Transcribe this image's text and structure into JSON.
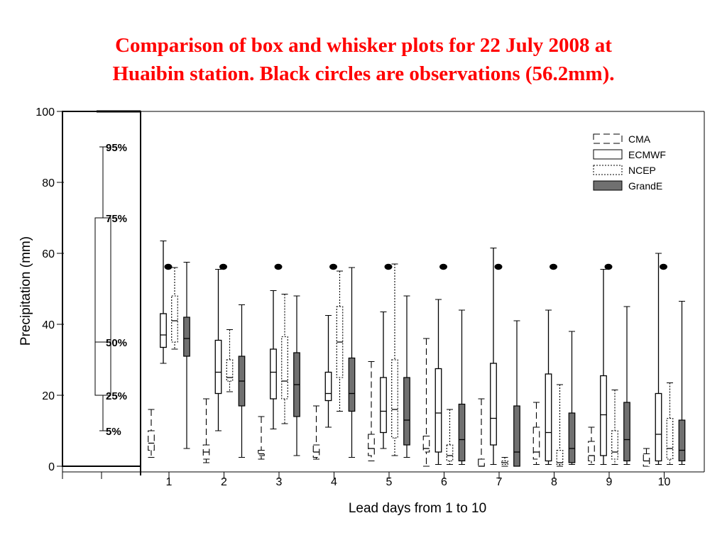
{
  "chart_data": {
    "type": "box",
    "title_line1": "Comparison of box and whisker plots for 22 July 2008 at",
    "title_line2": "Huaibin station. Black circles are observations (56.2mm).",
    "xlabel": "Lead days from 1 to 10",
    "ylabel": "Precipitation (mm)",
    "ylim": [
      0,
      100
    ],
    "yticks": [
      "0",
      "20",
      "40",
      "60",
      "80",
      "100"
    ],
    "categories": [
      "1",
      "2",
      "3",
      "4",
      "5",
      "6",
      "7",
      "8",
      "9",
      "10"
    ],
    "observation": 56.2,
    "key": {
      "p95": 90,
      "p75": 70,
      "p50": 35,
      "p25": 20,
      "p5": 10,
      "labels": [
        "95%",
        "75%",
        "50%",
        "25%",
        "5%"
      ]
    },
    "legend": [
      "CMA",
      "ECMWF",
      "NCEP",
      "GrandE"
    ],
    "series": [
      {
        "name": "CMA",
        "boxes": [
          {
            "p5": 2.5,
            "p25": 4.5,
            "p50": 6.5,
            "p75": 10,
            "p95": 16
          },
          {
            "p5": 1,
            "p25": 2,
            "p50": 4,
            "p75": 6,
            "p95": 19
          },
          {
            "p5": 2,
            "p25": 3,
            "p50": 3.5,
            "p75": 4.5,
            "p95": 14
          },
          {
            "p5": 2,
            "p25": 2.5,
            "p50": 4,
            "p75": 6,
            "p95": 17
          },
          {
            "p5": 1.5,
            "p25": 3,
            "p50": 5,
            "p75": 9,
            "p95": 29.5
          },
          {
            "p5": 0,
            "p25": 4,
            "p50": 5,
            "p75": 8.5,
            "p95": 36
          },
          {
            "p5": 0,
            "p25": 0,
            "p50": 0,
            "p75": 2,
            "p95": 19
          },
          {
            "p5": 0.5,
            "p25": 2,
            "p50": 4,
            "p75": 11,
            "p95": 18
          },
          {
            "p5": 0.5,
            "p25": 1.5,
            "p50": 3,
            "p75": 7,
            "p95": 11
          },
          {
            "p5": 0,
            "p25": 0,
            "p50": 1.5,
            "p75": 3.5,
            "p95": 5
          }
        ]
      },
      {
        "name": "ECMWF",
        "boxes": [
          {
            "p5": 29,
            "p25": 33.5,
            "p50": 37,
            "p75": 43,
            "p95": 63.5
          },
          {
            "p5": 10,
            "p25": 20.5,
            "p50": 26.5,
            "p75": 35.5,
            "p95": 55.5
          },
          {
            "p5": 10.5,
            "p25": 19,
            "p50": 26.5,
            "p75": 33,
            "p95": 49.5
          },
          {
            "p5": 11,
            "p25": 18.5,
            "p50": 20.5,
            "p75": 26.5,
            "p95": 42.5
          },
          {
            "p5": 5,
            "p25": 9.5,
            "p50": 15.5,
            "p75": 25,
            "p95": 43.5
          },
          {
            "p5": 0.5,
            "p25": 4,
            "p50": 15,
            "p75": 27.5,
            "p95": 47
          },
          {
            "p5": 0.5,
            "p25": 6,
            "p50": 13.5,
            "p75": 29,
            "p95": 61.5
          },
          {
            "p5": 0.5,
            "p25": 1.5,
            "p50": 9.5,
            "p75": 26,
            "p95": 44
          },
          {
            "p5": 0.5,
            "p25": 3,
            "p50": 14.5,
            "p75": 25.5,
            "p95": 55.5
          },
          {
            "p5": 0.5,
            "p25": 1.5,
            "p50": 9,
            "p75": 20.5,
            "p95": 60
          }
        ]
      },
      {
        "name": "NCEP",
        "boxes": [
          {
            "p5": 33,
            "p25": 35,
            "p50": 41,
            "p75": 48,
            "p95": 56
          },
          {
            "p5": 21,
            "p25": 24,
            "p50": 25,
            "p75": 30,
            "p95": 38.5
          },
          {
            "p5": 12,
            "p25": 19,
            "p50": 24,
            "p75": 36.5,
            "p95": 48.5
          },
          {
            "p5": 15.5,
            "p25": 25,
            "p50": 35,
            "p75": 45,
            "p95": 55
          },
          {
            "p5": 3,
            "p25": 8,
            "p50": 16,
            "p75": 30,
            "p95": 57
          },
          {
            "p5": 0.5,
            "p25": 1.5,
            "p50": 3,
            "p75": 6,
            "p95": 16
          },
          {
            "p5": 0,
            "p25": 0.5,
            "p50": 1,
            "p75": 1.5,
            "p95": 2.5
          },
          {
            "p5": 0,
            "p25": 0.5,
            "p50": 1,
            "p75": 4.5,
            "p95": 23
          },
          {
            "p5": 0.5,
            "p25": 2,
            "p50": 4,
            "p75": 10,
            "p95": 21.5
          },
          {
            "p5": 0.5,
            "p25": 2,
            "p50": 5,
            "p75": 13.5,
            "p95": 23.5
          }
        ]
      },
      {
        "name": "GrandE",
        "boxes": [
          {
            "p5": 5,
            "p25": 31,
            "p50": 36,
            "p75": 42,
            "p95": 57.5
          },
          {
            "p5": 2.5,
            "p25": 17,
            "p50": 24,
            "p75": 31,
            "p95": 45.5
          },
          {
            "p5": 3,
            "p25": 14,
            "p50": 23,
            "p75": 32,
            "p95": 48
          },
          {
            "p5": 2.5,
            "p25": 15.5,
            "p50": 20.5,
            "p75": 30.5,
            "p95": 56
          },
          {
            "p5": 2.5,
            "p25": 6,
            "p50": 13,
            "p75": 25,
            "p95": 48
          },
          {
            "p5": 0.5,
            "p25": 1.5,
            "p50": 7.5,
            "p75": 17.5,
            "p95": 44
          },
          {
            "p5": 0,
            "p25": 0,
            "p50": 4,
            "p75": 17,
            "p95": 41
          },
          {
            "p5": 0.5,
            "p25": 1,
            "p50": 5,
            "p75": 15,
            "p95": 38
          },
          {
            "p5": 0.5,
            "p25": 1.5,
            "p50": 7.5,
            "p75": 18,
            "p95": 45
          },
          {
            "p5": 0.5,
            "p25": 1.5,
            "p50": 4.5,
            "p75": 13,
            "p95": 46.5
          }
        ]
      }
    ]
  }
}
